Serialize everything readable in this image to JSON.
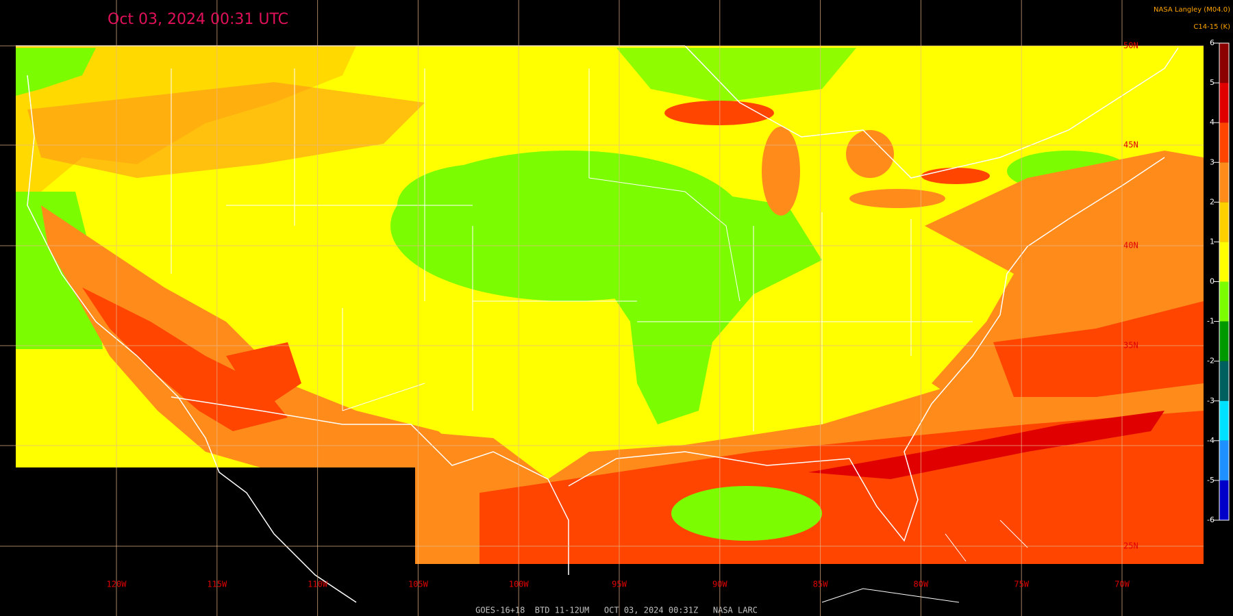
{
  "header": {
    "title": "Oct 03, 2024 00:31 UTC",
    "source": "NASA Langley (M04.0)",
    "product": "C14-15 (K)"
  },
  "colorbar": {
    "range": [
      -6,
      6
    ],
    "ticks": [
      6,
      5,
      4,
      3,
      2,
      1,
      0,
      -1,
      -2,
      -3,
      -4,
      -5,
      -6
    ],
    "colors": [
      "#8b0000",
      "#e00000",
      "#ff4500",
      "#ff8c1a",
      "#ffd000",
      "#ffff00",
      "#7cfc00",
      "#009a00",
      "#006060",
      "#00e0ff",
      "#1e90ff",
      "#0000c8",
      "#5a0080"
    ]
  },
  "lon_labels": [
    "120W",
    "115W",
    "110W",
    "105W",
    "100W",
    "95W",
    "90W",
    "85W",
    "80W",
    "75W",
    "70W"
  ],
  "lat_labels": [
    "50N",
    "45N",
    "40N",
    "35N",
    "25N"
  ],
  "footer": "GOES-16+18  BTD 11-12UM   OCT 03, 2024 00:31Z   NASA LARC"
}
